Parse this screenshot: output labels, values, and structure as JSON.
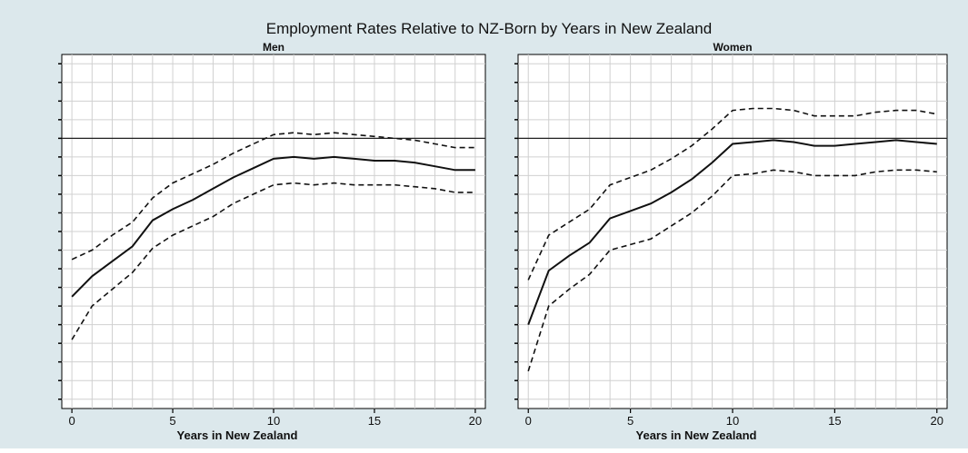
{
  "figure": {
    "title": "Employment Rates Relative to NZ-Born by Years in New Zealand",
    "background": "#dce8ec",
    "plot_background": "#ffffff",
    "grid_color": "#d0d0d0",
    "line_color": "#111111"
  },
  "chart_data": [
    {
      "type": "line",
      "title": "Men",
      "xlabel": "Years in New Zealand",
      "ylabel": "",
      "xlim": [
        -0.5,
        20.5
      ],
      "ylim": [
        -0.145,
        0.045
      ],
      "xticks": [
        0,
        5,
        10,
        15,
        20
      ],
      "grid": true,
      "reference_line": 0,
      "x": [
        0,
        1,
        2,
        3,
        4,
        5,
        6,
        7,
        8,
        9,
        10,
        11,
        12,
        13,
        14,
        15,
        16,
        17,
        18,
        19,
        20
      ],
      "series": [
        {
          "style": "solid",
          "values": [
            -0.085,
            -0.074,
            -0.066,
            -0.058,
            -0.044,
            -0.038,
            -0.033,
            -0.027,
            -0.021,
            -0.016,
            -0.011,
            -0.01,
            -0.011,
            -0.01,
            -0.011,
            -0.012,
            -0.012,
            -0.013,
            -0.015,
            -0.017,
            -0.017
          ]
        },
        {
          "style": "dashed",
          "values": [
            -0.065,
            -0.06,
            -0.052,
            -0.045,
            -0.032,
            -0.024,
            -0.019,
            -0.014,
            -0.008,
            -0.003,
            0.002,
            0.003,
            0.002,
            0.003,
            0.002,
            0.001,
            0.0,
            -0.001,
            -0.003,
            -0.005,
            -0.005
          ]
        },
        {
          "style": "dashed",
          "values": [
            -0.108,
            -0.09,
            -0.081,
            -0.072,
            -0.059,
            -0.052,
            -0.047,
            -0.042,
            -0.035,
            -0.03,
            -0.025,
            -0.024,
            -0.025,
            -0.024,
            -0.025,
            -0.025,
            -0.025,
            -0.026,
            -0.027,
            -0.029,
            -0.029
          ]
        }
      ]
    },
    {
      "type": "line",
      "title": "Women",
      "xlabel": "Years in New Zealand",
      "ylabel": "",
      "xlim": [
        -0.5,
        20.5
      ],
      "ylim": [
        -0.145,
        0.045
      ],
      "xticks": [
        0,
        5,
        10,
        15,
        20
      ],
      "grid": true,
      "reference_line": 0,
      "x": [
        0,
        1,
        2,
        3,
        4,
        5,
        6,
        7,
        8,
        9,
        10,
        11,
        12,
        13,
        14,
        15,
        16,
        17,
        18,
        19,
        20
      ],
      "series": [
        {
          "style": "solid",
          "values": [
            -0.1,
            -0.071,
            -0.063,
            -0.056,
            -0.043,
            -0.039,
            -0.035,
            -0.029,
            -0.022,
            -0.013,
            -0.003,
            -0.002,
            -0.001,
            -0.002,
            -0.004,
            -0.004,
            -0.003,
            -0.002,
            -0.001,
            -0.002,
            -0.003
          ]
        },
        {
          "style": "dashed",
          "values": [
            -0.076,
            -0.052,
            -0.045,
            -0.038,
            -0.025,
            -0.021,
            -0.017,
            -0.011,
            -0.004,
            0.005,
            0.015,
            0.016,
            0.016,
            0.015,
            0.012,
            0.012,
            0.012,
            0.014,
            0.015,
            0.015,
            0.013
          ]
        },
        {
          "style": "dashed",
          "values": [
            -0.125,
            -0.09,
            -0.081,
            -0.073,
            -0.06,
            -0.057,
            -0.054,
            -0.047,
            -0.04,
            -0.031,
            -0.02,
            -0.019,
            -0.017,
            -0.018,
            -0.02,
            -0.02,
            -0.02,
            -0.018,
            -0.017,
            -0.017,
            -0.018
          ]
        }
      ]
    }
  ]
}
